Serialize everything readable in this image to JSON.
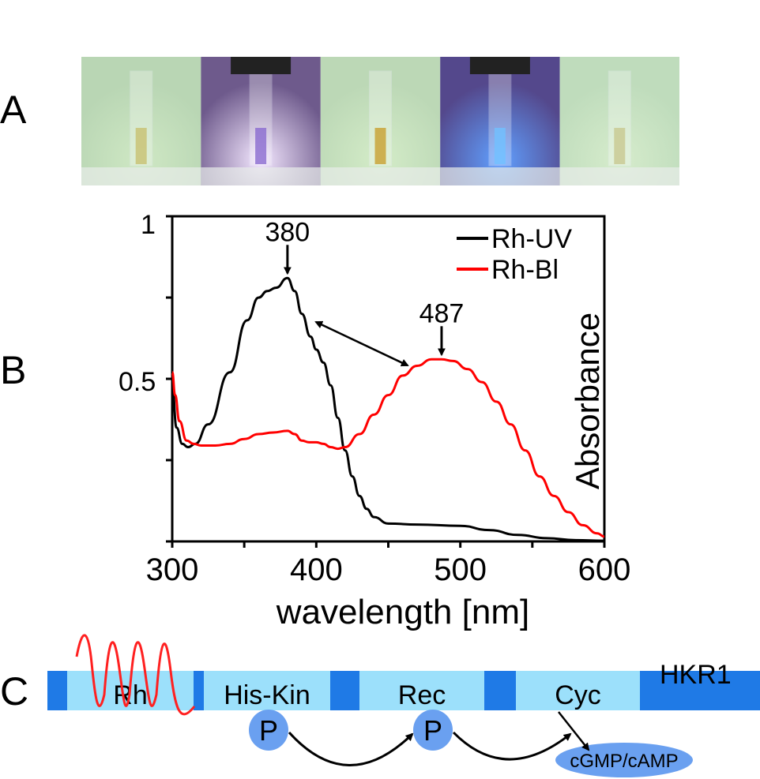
{
  "panels": {
    "a": "A",
    "b": "B",
    "c": "C"
  },
  "photos": [
    {
      "bg": "#b9d6b4",
      "glow": "#cfe8c4",
      "liquid": "#c8c070"
    },
    {
      "bg": "#6e5a8c",
      "glow": "#f4e8ff",
      "liquid": "#8a6ad0"
    },
    {
      "bg": "#bcd8b6",
      "glow": "#d4ecc8",
      "liquid": "#c8a030"
    },
    {
      "bg": "#54488c",
      "glow": "#60a0ff",
      "liquid": "#70c0ff"
    },
    {
      "bg": "#bfdcbc",
      "glow": "#d6eccc",
      "liquid": "#c8c890"
    }
  ],
  "chart_data": {
    "type": "line",
    "xlabel": "wavelength [nm]",
    "ylabel": "Absorbance",
    "xlim": [
      300,
      600
    ],
    "ylim": [
      0,
      1
    ],
    "xticks": [
      "300",
      "400",
      "500",
      "600"
    ],
    "yticks": [
      "0.5",
      "1"
    ],
    "legend_placement": "top-right",
    "series": [
      {
        "name": "Rh-UV",
        "color": "#000000",
        "x": [
          300,
          303,
          307,
          311,
          316,
          325,
          340,
          352,
          360,
          366,
          372,
          380,
          385,
          390,
          396,
          400,
          405,
          410,
          415,
          420,
          425,
          430,
          435,
          440,
          450,
          470,
          500,
          520,
          540,
          560,
          580,
          600
        ],
        "y": [
          0.48,
          0.35,
          0.3,
          0.29,
          0.3,
          0.36,
          0.52,
          0.68,
          0.75,
          0.77,
          0.78,
          0.81,
          0.77,
          0.7,
          0.63,
          0.59,
          0.55,
          0.48,
          0.38,
          0.28,
          0.2,
          0.14,
          0.1,
          0.075,
          0.055,
          0.052,
          0.048,
          0.035,
          0.02,
          0.01,
          0.004,
          0.002
        ]
      },
      {
        "name": "Rh-Bl",
        "color": "#ff0000",
        "x": [
          300,
          302,
          305,
          310,
          315,
          320,
          330,
          340,
          350,
          360,
          370,
          380,
          385,
          390,
          395,
          400,
          405,
          410,
          415,
          420,
          430,
          440,
          450,
          460,
          470,
          480,
          487,
          495,
          505,
          515,
          525,
          535,
          545,
          555,
          565,
          575,
          585,
          595,
          600
        ],
        "y": [
          0.52,
          0.45,
          0.37,
          0.31,
          0.3,
          0.295,
          0.295,
          0.3,
          0.315,
          0.33,
          0.335,
          0.34,
          0.33,
          0.31,
          0.305,
          0.305,
          0.3,
          0.29,
          0.285,
          0.29,
          0.33,
          0.39,
          0.45,
          0.51,
          0.54,
          0.56,
          0.56,
          0.555,
          0.53,
          0.49,
          0.43,
          0.36,
          0.28,
          0.2,
          0.14,
          0.09,
          0.05,
          0.025,
          0.015
        ]
      }
    ],
    "annotations": [
      {
        "text": "380",
        "x": 380,
        "y": 0.81
      },
      {
        "text": "487",
        "x": 487,
        "y": 0.56
      }
    ]
  },
  "diagram": {
    "protein": "HKR1",
    "domains": [
      "Rh",
      "His-Kin",
      "Rec",
      "Cyc"
    ],
    "phospho": [
      "P",
      "P"
    ],
    "product": "cGMP/cAMP",
    "colors": {
      "linker": "#1f7ae6",
      "domain": "#9ce0fb",
      "phospho": "#6aa0f0",
      "wave": "#ff2020"
    }
  }
}
